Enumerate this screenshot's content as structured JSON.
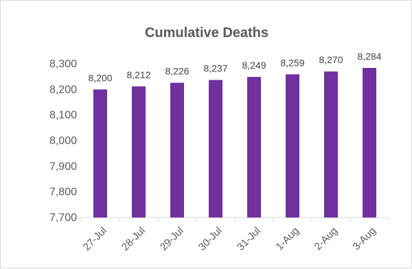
{
  "chart_data": {
    "type": "bar",
    "title": "Cumulative Deaths",
    "categories": [
      "27-Jul",
      "28-Jul",
      "29-Jul",
      "30-Jul",
      "31-Jul",
      "1-Aug",
      "2-Aug",
      "3-Aug"
    ],
    "values": [
      8200,
      8212,
      8226,
      8237,
      8249,
      8259,
      8270,
      8284
    ],
    "data_labels": [
      "8,200",
      "8,212",
      "8,226",
      "8,237",
      "8,249",
      "8,259",
      "8,270",
      "8,284"
    ],
    "yticks": [
      7700,
      7800,
      7900,
      8000,
      8100,
      8200,
      8300
    ],
    "ytick_labels": [
      "7,700",
      "7,800",
      "7,900",
      "8,000",
      "8,100",
      "8,200",
      "8,300"
    ],
    "ylim": [
      7700,
      8300
    ],
    "grid": false,
    "legend": "none",
    "bar_color": "#7030a0"
  }
}
